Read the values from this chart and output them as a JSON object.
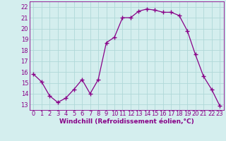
{
  "hours": [
    0,
    1,
    2,
    3,
    4,
    5,
    6,
    7,
    8,
    9,
    10,
    11,
    12,
    13,
    14,
    15,
    16,
    17,
    18,
    19,
    20,
    21,
    22,
    23
  ],
  "values": [
    15.8,
    15.1,
    13.8,
    13.2,
    13.6,
    14.4,
    15.3,
    14.0,
    15.3,
    18.7,
    19.2,
    21.0,
    21.0,
    21.6,
    21.8,
    21.7,
    21.5,
    21.5,
    21.2,
    19.8,
    17.6,
    15.6,
    14.4,
    12.9
  ],
  "line_color": "#880088",
  "marker": "+",
  "marker_size": 4,
  "bg_color": "#d4eeee",
  "grid_color": "#b0d8d8",
  "xlabel": "Windchill (Refroidissement éolien,°C)",
  "ylim": [
    12.5,
    22.5
  ],
  "yticks": [
    13,
    14,
    15,
    16,
    17,
    18,
    19,
    20,
    21,
    22
  ],
  "xticks": [
    0,
    1,
    2,
    3,
    4,
    5,
    6,
    7,
    8,
    9,
    10,
    11,
    12,
    13,
    14,
    15,
    16,
    17,
    18,
    19,
    20,
    21,
    22,
    23
  ],
  "axis_label_color": "#880088",
  "tick_color": "#880088",
  "font_size_label": 6.5,
  "font_size_tick": 6.0,
  "linewidth": 0.9,
  "markeredgewidth": 1.0
}
